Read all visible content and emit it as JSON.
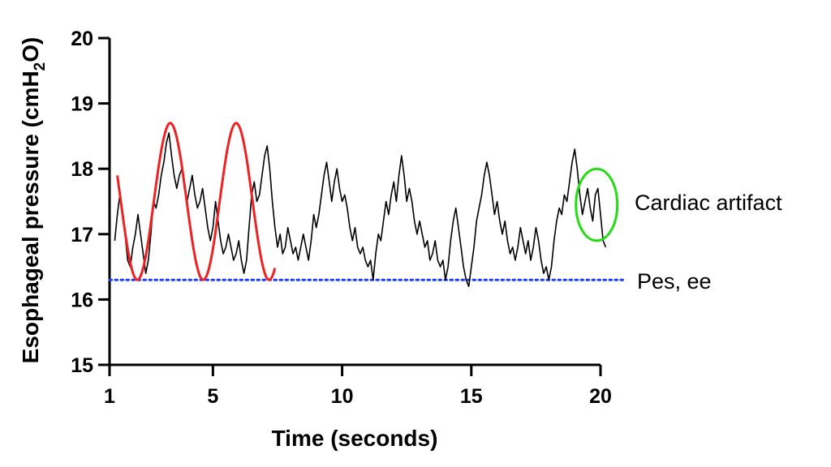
{
  "chart_data": {
    "type": "line",
    "xlabel": "Time (seconds)",
    "ylabel_prefix": "Esophageal pressure (cmH",
    "ylabel_sub": "2",
    "ylabel_suffix": "O)",
    "xlim": [
      1,
      20
    ],
    "ylim": [
      15,
      20
    ],
    "x_ticks": [
      1,
      5,
      10,
      15,
      20
    ],
    "y_ticks": [
      15,
      16,
      17,
      18,
      19,
      20
    ],
    "grid": false,
    "series": [
      {
        "color": "#000000",
        "points": [
          [
            1.2,
            16.9
          ],
          [
            1.3,
            17.3
          ],
          [
            1.4,
            17.6
          ],
          [
            1.5,
            17.3
          ],
          [
            1.6,
            17.0
          ],
          [
            1.7,
            16.6
          ],
          [
            1.8,
            16.5
          ],
          [
            1.9,
            16.8
          ],
          [
            2.0,
            17.0
          ],
          [
            2.1,
            17.3
          ],
          [
            2.2,
            17.0
          ],
          [
            2.3,
            16.7
          ],
          [
            2.4,
            16.4
          ],
          [
            2.5,
            16.6
          ],
          [
            2.6,
            17.0
          ],
          [
            2.7,
            17.5
          ],
          [
            2.8,
            17.4
          ],
          [
            2.9,
            17.6
          ],
          [
            3.0,
            17.9
          ],
          [
            3.1,
            18.1
          ],
          [
            3.2,
            18.4
          ],
          [
            3.3,
            18.55
          ],
          [
            3.4,
            18.2
          ],
          [
            3.5,
            17.9
          ],
          [
            3.6,
            17.7
          ],
          [
            3.7,
            17.9
          ],
          [
            3.8,
            18.0
          ],
          [
            3.9,
            17.7
          ],
          [
            4.0,
            17.5
          ],
          [
            4.1,
            17.7
          ],
          [
            4.2,
            17.9
          ],
          [
            4.3,
            17.6
          ],
          [
            4.4,
            17.4
          ],
          [
            4.5,
            17.5
          ],
          [
            4.6,
            17.7
          ],
          [
            4.7,
            17.4
          ],
          [
            4.8,
            17.1
          ],
          [
            4.9,
            16.9
          ],
          [
            5.0,
            17.1
          ],
          [
            5.1,
            17.5
          ],
          [
            5.2,
            17.2
          ],
          [
            5.3,
            16.9
          ],
          [
            5.4,
            16.7
          ],
          [
            5.5,
            16.8
          ],
          [
            5.6,
            17.0
          ],
          [
            5.7,
            16.8
          ],
          [
            5.8,
            16.6
          ],
          [
            5.9,
            16.7
          ],
          [
            6.0,
            16.9
          ],
          [
            6.1,
            16.6
          ],
          [
            6.2,
            16.4
          ],
          [
            6.3,
            16.6
          ],
          [
            6.4,
            17.1
          ],
          [
            6.5,
            17.6
          ],
          [
            6.6,
            17.8
          ],
          [
            6.7,
            17.5
          ],
          [
            6.8,
            17.6
          ],
          [
            6.9,
            17.9
          ],
          [
            7.0,
            18.2
          ],
          [
            7.1,
            18.35
          ],
          [
            7.2,
            18.0
          ],
          [
            7.3,
            17.5
          ],
          [
            7.4,
            17.1
          ],
          [
            7.5,
            16.8
          ],
          [
            7.6,
            17.0
          ],
          [
            7.7,
            16.7
          ],
          [
            7.8,
            16.8
          ],
          [
            7.9,
            17.1
          ],
          [
            8.0,
            16.9
          ],
          [
            8.1,
            16.7
          ],
          [
            8.2,
            16.8
          ],
          [
            8.3,
            16.6
          ],
          [
            8.4,
            16.8
          ],
          [
            8.5,
            17.0
          ],
          [
            8.6,
            16.8
          ],
          [
            8.7,
            16.6
          ],
          [
            8.8,
            16.9
          ],
          [
            8.9,
            17.3
          ],
          [
            9.0,
            17.1
          ],
          [
            9.1,
            17.3
          ],
          [
            9.2,
            17.6
          ],
          [
            9.3,
            17.9
          ],
          [
            9.4,
            18.1
          ],
          [
            9.5,
            17.8
          ],
          [
            9.6,
            17.5
          ],
          [
            9.7,
            17.8
          ],
          [
            9.8,
            18.0
          ],
          [
            9.9,
            17.7
          ],
          [
            10.0,
            17.5
          ],
          [
            10.1,
            17.6
          ],
          [
            10.2,
            17.4
          ],
          [
            10.3,
            17.1
          ],
          [
            10.4,
            16.9
          ],
          [
            10.5,
            17.1
          ],
          [
            10.6,
            16.8
          ],
          [
            10.7,
            16.7
          ],
          [
            10.8,
            16.8
          ],
          [
            10.9,
            16.6
          ],
          [
            11.0,
            16.5
          ],
          [
            11.1,
            16.6
          ],
          [
            11.2,
            16.3
          ],
          [
            11.3,
            16.7
          ],
          [
            11.4,
            17.0
          ],
          [
            11.5,
            16.9
          ],
          [
            11.6,
            17.2
          ],
          [
            11.7,
            17.5
          ],
          [
            11.8,
            17.3
          ],
          [
            11.9,
            17.6
          ],
          [
            12.0,
            17.8
          ],
          [
            12.1,
            17.5
          ],
          [
            12.2,
            17.9
          ],
          [
            12.3,
            18.2
          ],
          [
            12.4,
            17.9
          ],
          [
            12.5,
            17.5
          ],
          [
            12.6,
            17.7
          ],
          [
            12.7,
            17.5
          ],
          [
            12.8,
            17.2
          ],
          [
            12.9,
            17.0
          ],
          [
            13.0,
            17.2
          ],
          [
            13.1,
            17.0
          ],
          [
            13.2,
            16.8
          ],
          [
            13.3,
            16.9
          ],
          [
            13.4,
            16.6
          ],
          [
            13.5,
            16.7
          ],
          [
            13.6,
            16.9
          ],
          [
            13.7,
            16.6
          ],
          [
            13.8,
            16.5
          ],
          [
            13.9,
            16.6
          ],
          [
            14.0,
            16.3
          ],
          [
            14.1,
            16.5
          ],
          [
            14.2,
            16.9
          ],
          [
            14.3,
            17.2
          ],
          [
            14.4,
            17.4
          ],
          [
            14.5,
            17.1
          ],
          [
            14.6,
            16.8
          ],
          [
            14.7,
            16.5
          ],
          [
            14.8,
            16.3
          ],
          [
            14.9,
            16.2
          ],
          [
            15.0,
            16.5
          ],
          [
            15.1,
            16.8
          ],
          [
            15.2,
            17.2
          ],
          [
            15.3,
            17.4
          ],
          [
            15.4,
            17.6
          ],
          [
            15.5,
            17.9
          ],
          [
            15.6,
            18.1
          ],
          [
            15.7,
            17.9
          ],
          [
            15.8,
            17.6
          ],
          [
            15.9,
            17.3
          ],
          [
            16.0,
            17.5
          ],
          [
            16.1,
            17.2
          ],
          [
            16.2,
            17.0
          ],
          [
            16.3,
            17.2
          ],
          [
            16.4,
            16.9
          ],
          [
            16.5,
            16.7
          ],
          [
            16.6,
            16.8
          ],
          [
            16.7,
            16.6
          ],
          [
            16.8,
            16.8
          ],
          [
            16.9,
            17.1
          ],
          [
            17.0,
            16.9
          ],
          [
            17.1,
            16.7
          ],
          [
            17.2,
            16.9
          ],
          [
            17.3,
            16.6
          ],
          [
            17.4,
            16.8
          ],
          [
            17.5,
            17.1
          ],
          [
            17.6,
            16.9
          ],
          [
            17.7,
            16.6
          ],
          [
            17.8,
            16.4
          ],
          [
            17.9,
            16.5
          ],
          [
            18.0,
            16.3
          ],
          [
            18.1,
            16.5
          ],
          [
            18.2,
            16.9
          ],
          [
            18.3,
            17.2
          ],
          [
            18.4,
            17.4
          ],
          [
            18.5,
            17.3
          ],
          [
            18.6,
            17.6
          ],
          [
            18.7,
            17.5
          ],
          [
            18.8,
            17.8
          ],
          [
            18.9,
            18.1
          ],
          [
            19.0,
            18.3
          ],
          [
            19.1,
            18.0
          ],
          [
            19.2,
            17.6
          ],
          [
            19.3,
            17.3
          ],
          [
            19.4,
            17.5
          ],
          [
            19.5,
            17.7
          ],
          [
            19.6,
            17.4
          ],
          [
            19.7,
            17.2
          ],
          [
            19.8,
            17.6
          ],
          [
            19.9,
            17.7
          ],
          [
            20.0,
            17.3
          ],
          [
            20.1,
            16.9
          ],
          [
            20.2,
            16.8
          ]
        ]
      }
    ],
    "reference_line": {
      "name": "Pes, ee",
      "y": 16.3,
      "x_range": [
        1,
        21
      ],
      "style": "dotted",
      "color": "#1f3fff"
    },
    "annotations": [
      {
        "text": "Cardiac artifact",
        "shape": "ellipse",
        "color": "#22dd11",
        "cx": 19.85,
        "cy": 17.45,
        "rx": 0.8,
        "ry": 0.55
      }
    ],
    "highlight": {
      "type": "sine-overlay",
      "color": "#ee2222",
      "x_range": [
        1.3,
        7.4
      ],
      "center_y": 17.5,
      "amplitude": 1.2,
      "period_s": 2.55,
      "peak_x": 3.35
    }
  }
}
